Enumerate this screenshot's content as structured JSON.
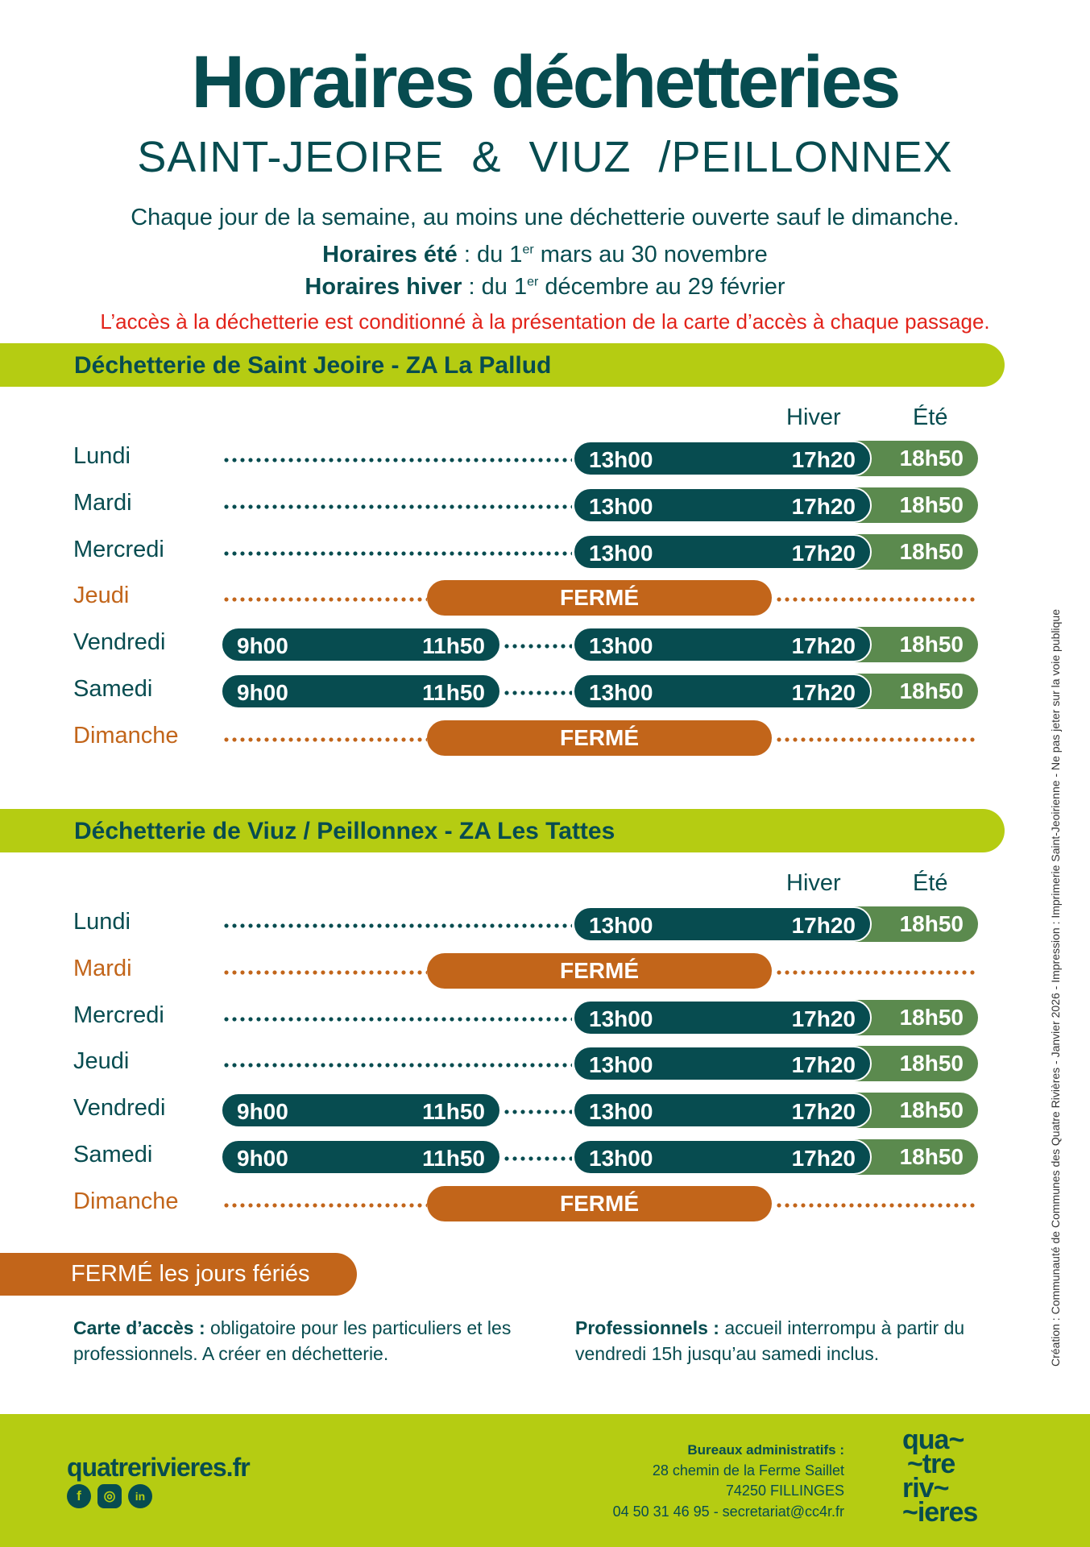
{
  "header": {
    "title": "Horaires déchetteries",
    "subtitle": "SAINT-JEOIRE & VIUZ /PEILLONNEX",
    "intro": "Chaque jour de la semaine, au moins une déchetterie ouverte sauf le dimanche.",
    "summer_label": "Horaires été",
    "summer_text_a": " : du 1",
    "summer_sup": "er",
    "summer_text_b": " mars au 30 novembre",
    "winter_label": "Horaires hiver",
    "winter_text_a": " : du 1",
    "winter_sup": "er",
    "winter_text_b": " décembre au 29 février",
    "access_notice": "L’accès à la déchetterie est conditionné à la présentation de la carte d’accès à chaque passage."
  },
  "sections": [
    {
      "title": "Déchetterie de Saint Jeoire - ZA La Pallud",
      "col_winter": "Hiver",
      "col_summer": "Été",
      "rows": [
        {
          "day": "Lundi",
          "closed": false,
          "morning": null,
          "afternoon": [
            "13h00",
            "17h20"
          ],
          "summer_close": "18h50"
        },
        {
          "day": "Mardi",
          "closed": false,
          "morning": null,
          "afternoon": [
            "13h00",
            "17h20"
          ],
          "summer_close": "18h50"
        },
        {
          "day": "Mercredi",
          "closed": false,
          "morning": null,
          "afternoon": [
            "13h00",
            "17h20"
          ],
          "summer_close": "18h50"
        },
        {
          "day": "Jeudi",
          "closed": true,
          "closed_label": "FERMÉ"
        },
        {
          "day": "Vendredi",
          "closed": false,
          "morning": [
            "9h00",
            "11h50"
          ],
          "afternoon": [
            "13h00",
            "17h20"
          ],
          "summer_close": "18h50"
        },
        {
          "day": "Samedi",
          "closed": false,
          "morning": [
            "9h00",
            "11h50"
          ],
          "afternoon": [
            "13h00",
            "17h20"
          ],
          "summer_close": "18h50"
        },
        {
          "day": "Dimanche",
          "closed": true,
          "closed_label": "FERMÉ"
        }
      ]
    },
    {
      "title": "Déchetterie de Viuz / Peillonnex - ZA Les Tattes",
      "col_winter": "Hiver",
      "col_summer": "Été",
      "rows": [
        {
          "day": "Lundi",
          "closed": false,
          "morning": null,
          "afternoon": [
            "13h00",
            "17h20"
          ],
          "summer_close": "18h50"
        },
        {
          "day": "Mardi",
          "closed": true,
          "closed_label": "FERMÉ"
        },
        {
          "day": "Mercredi",
          "closed": false,
          "morning": null,
          "afternoon": [
            "13h00",
            "17h20"
          ],
          "summer_close": "18h50"
        },
        {
          "day": "Jeudi",
          "closed": false,
          "morning": null,
          "afternoon": [
            "13h00",
            "17h20"
          ],
          "summer_close": "18h50"
        },
        {
          "day": "Vendredi",
          "closed": false,
          "morning": [
            "9h00",
            "11h50"
          ],
          "afternoon": [
            "13h00",
            "17h20"
          ],
          "summer_close": "18h50"
        },
        {
          "day": "Samedi",
          "closed": false,
          "morning": [
            "9h00",
            "11h50"
          ],
          "afternoon": [
            "13h00",
            "17h20"
          ],
          "summer_close": "18h50"
        },
        {
          "day": "Dimanche",
          "closed": true,
          "closed_label": "FERMÉ"
        }
      ]
    }
  ],
  "holidays": "FERMÉ les jours fériés",
  "notes": {
    "card_label": "Carte d’accès :",
    "card_text": " obligatoire pour les particuliers et les professionnels. A créer en déchetterie.",
    "pro_label": "Professionnels :",
    "pro_text": " accueil interrompu à partir du vendredi 15h jusqu’au samedi inclus."
  },
  "side_credit": "Création : Communauté de Communes des Quatre Rivières - Janvier 2026 - Impression : Imprimerie Saint-Jeoirienne - Ne pas jeter sur la voie publique",
  "footer": {
    "website": "quatrerivieres.fr",
    "social": [
      "facebook",
      "instagram",
      "linkedin"
    ],
    "address_title": "Bureaux administratifs :",
    "address_line1": "28 chemin de la Ferme Saillet",
    "address_line2": "74250 FILLINGES",
    "contact": "04 50 31 46 95 - secretariat@cc4r.fr",
    "logo_lines": [
      "qua~",
      "~tre",
      "riv~",
      "~ieres"
    ]
  },
  "colors": {
    "teal": "#074c50",
    "green": "#5b8a4e",
    "orange": "#c2651a",
    "lime": "#b5cc12",
    "red": "#e2231a"
  }
}
